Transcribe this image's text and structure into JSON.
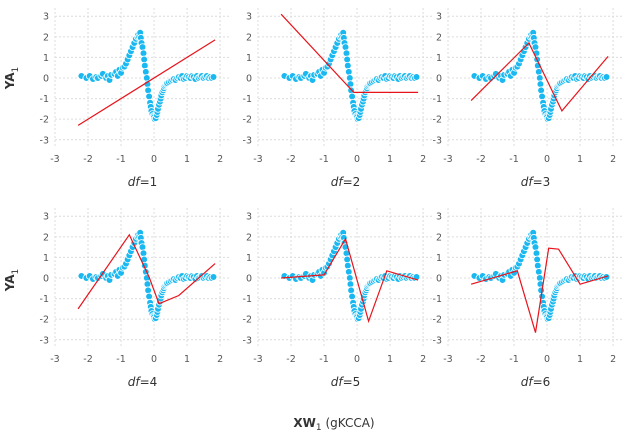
{
  "chart_data": {
    "type": "scatter",
    "layout": "2x3 facet grid, shared axes",
    "xlabel": {
      "main": "XW",
      "sub": "1",
      "extra": " (gKCCA)"
    },
    "ylabel": {
      "main": "YA",
      "sub": "1"
    },
    "xlim": [
      -3,
      2.3
    ],
    "ylim": [
      -3.4,
      3.4
    ],
    "xticks": [
      -3,
      -2,
      -1,
      0,
      1,
      2
    ],
    "yticks": [
      -3,
      -2,
      -1,
      0,
      1,
      2,
      3
    ],
    "grid": true,
    "colors": {
      "points": "#1ab8f0",
      "point_edge": "#ffffff",
      "line": "#e8141c",
      "grid": "#dcdcdc"
    },
    "panels": [
      {
        "title_var": "df",
        "title_eq": "=1",
        "line": {
          "x": [
            -2.3,
            1.85
          ],
          "y": [
            -2.3,
            1.85
          ]
        }
      },
      {
        "title_var": "df",
        "title_eq": "=2",
        "line": {
          "x": [
            -2.3,
            -0.1,
            1.85
          ],
          "y": [
            3.1,
            -0.7,
            -0.7
          ]
        }
      },
      {
        "title_var": "df",
        "title_eq": "=3",
        "line": {
          "x": [
            -2.3,
            -0.55,
            0.45,
            1.85
          ],
          "y": [
            -1.1,
            1.7,
            -1.6,
            1.05
          ]
        }
      },
      {
        "title_var": "df",
        "title_eq": "=4",
        "line": {
          "x": [
            -2.3,
            -0.75,
            -0.15,
            0.15,
            0.75,
            1.85
          ],
          "y": [
            -1.5,
            2.1,
            0.05,
            -1.25,
            -0.85,
            0.7
          ]
        }
      },
      {
        "title_var": "df",
        "title_eq": "=5",
        "line": {
          "x": [
            -2.3,
            -1.0,
            -0.35,
            0.35,
            0.9,
            1.85
          ],
          "y": [
            0.0,
            0.15,
            1.9,
            -2.1,
            0.35,
            -0.1
          ]
        }
      },
      {
        "title_var": "df",
        "title_eq": "=6",
        "line": {
          "x": [
            -2.3,
            -0.9,
            -0.35,
            0.05,
            0.35,
            1.0,
            1.85
          ],
          "y": [
            -0.3,
            0.35,
            -2.65,
            1.45,
            1.4,
            -0.3,
            0.1
          ]
        }
      }
    ],
    "points": {
      "x": [
        -2.2,
        -2.05,
        -1.95,
        -1.85,
        -1.75,
        -1.7,
        -1.6,
        -1.55,
        -1.45,
        -1.4,
        -1.35,
        -1.3,
        -1.2,
        -1.15,
        -1.1,
        -1.05,
        -1.0,
        -0.95,
        -0.9,
        -0.85,
        -0.8,
        -0.75,
        -0.7,
        -0.65,
        -0.6,
        -0.55,
        -0.5,
        -0.48,
        -0.45,
        -0.42,
        -0.4,
        -0.38,
        -0.35,
        -0.32,
        -0.3,
        -0.28,
        -0.25,
        -0.22,
        -0.2,
        -0.18,
        -0.15,
        -0.12,
        -0.1,
        -0.08,
        -0.05,
        -0.02,
        0.0,
        0.02,
        0.05,
        0.08,
        0.1,
        0.12,
        0.15,
        0.18,
        0.2,
        0.22,
        0.25,
        0.28,
        0.3,
        0.32,
        0.35,
        0.38,
        0.4,
        0.45,
        0.5,
        0.55,
        0.6,
        0.65,
        0.7,
        0.75,
        0.8,
        0.85,
        0.9,
        0.95,
        1.0,
        1.05,
        1.1,
        1.15,
        1.2,
        1.25,
        1.3,
        1.35,
        1.4,
        1.45,
        1.5,
        1.55,
        1.6,
        1.65,
        1.7,
        1.75,
        1.8
      ],
      "y": [
        0.1,
        0.0,
        0.1,
        -0.05,
        0.05,
        0.0,
        0.1,
        0.2,
        0.0,
        0.1,
        -0.1,
        0.15,
        0.2,
        0.3,
        0.1,
        0.4,
        0.25,
        0.5,
        0.55,
        0.7,
        0.9,
        1.1,
        1.3,
        1.5,
        1.7,
        1.9,
        2.0,
        2.1,
        2.0,
        2.2,
        1.95,
        1.7,
        1.5,
        1.2,
        0.9,
        0.6,
        0.3,
        0.0,
        -0.3,
        -0.6,
        -0.9,
        -1.2,
        -1.4,
        -1.6,
        -1.75,
        -1.85,
        -1.9,
        -2.0,
        -1.95,
        -1.8,
        -1.65,
        -1.5,
        -1.3,
        -1.15,
        -1.0,
        -0.85,
        -0.7,
        -0.6,
        -0.5,
        -0.4,
        -0.35,
        -0.3,
        -0.25,
        -0.2,
        -0.15,
        -0.1,
        -0.05,
        -0.1,
        0.0,
        0.05,
        0.0,
        0.1,
        -0.05,
        0.0,
        0.1,
        0.05,
        0.0,
        0.1,
        0.05,
        -0.05,
        0.1,
        0.0,
        0.05,
        0.1,
        0.0,
        0.05,
        0.1,
        0.0,
        0.05,
        0.0,
        0.05
      ]
    }
  }
}
